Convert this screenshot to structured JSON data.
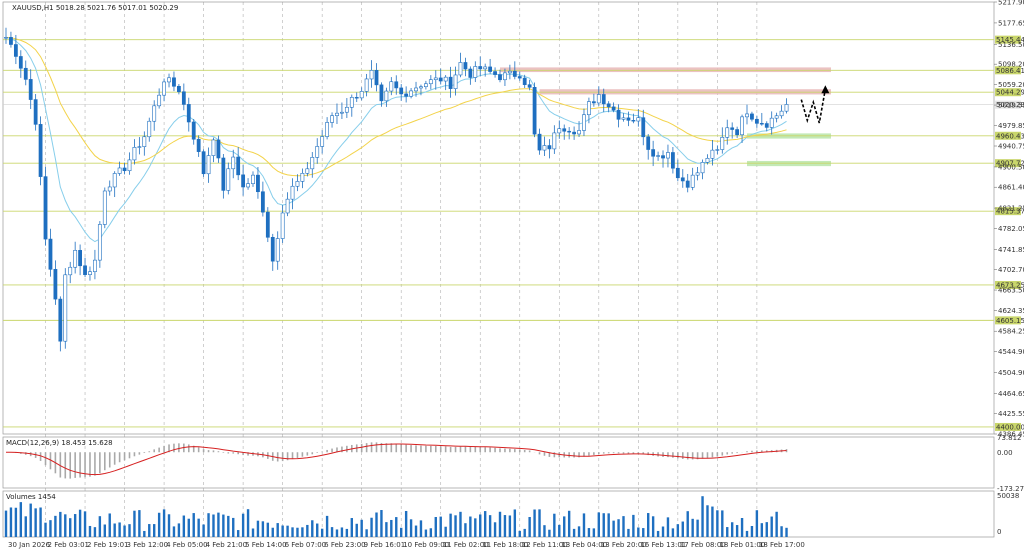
{
  "chart_data": {
    "type": "candlestick",
    "symbol_header": "XAUUSD,H1  5018.28 5021.76 5017.01 5020.29",
    "colors": {
      "up": "#1e6fc0",
      "down": "#1e6fc0",
      "grid": "#b0b0b0",
      "level_line": "#c9d66b",
      "zone": "#e8b7b7",
      "support_zone": "#b8e5a8",
      "ma_fast": "#87ceeb",
      "ma_slow": "#f3d34a",
      "macd_signal": "#d62020",
      "macd_hist": "#a9a9a9",
      "volume": "#1e6fc0",
      "price_tag": "#c9d66b",
      "current_price_tag": "#e6e6e6",
      "arrow": "#000000"
    },
    "price_axis": {
      "ylim": [
        4386.45,
        5217.9
      ],
      "ticks": [
        "5217.90",
        "5177.65",
        "5136.50",
        "5098.20",
        "5059.20",
        "5019.55",
        "4979.85",
        "4940.75",
        "4900.50",
        "4861.40",
        "4821.25",
        "4782.05",
        "4741.85",
        "4702.70",
        "4663.50",
        "4624.35",
        "4584.25",
        "4544.90",
        "4504.90",
        "4464.65",
        "4425.55",
        "4386.45"
      ]
    },
    "levels": [
      {
        "value": 5145.44,
        "label": "5145.44"
      },
      {
        "value": 5086.41,
        "label": "5086.41"
      },
      {
        "value": 5044.29,
        "label": "5044.29"
      },
      {
        "value": 4960.43,
        "label": "4960.43"
      },
      {
        "value": 4907.72,
        "label": "4907.72"
      },
      {
        "value": 4815.37,
        "label": "4815.37"
      },
      {
        "value": 4673.25,
        "label": "4673.25"
      },
      {
        "value": 4605.15,
        "label": "4605.15"
      },
      {
        "value": 4400.0,
        "label": "4400.00"
      }
    ],
    "current_price": {
      "value": 5020.29,
      "label": "5020.29"
    },
    "resistance_zones": [
      {
        "from": 5083,
        "to": 5092,
        "start_index": 100
      },
      {
        "from": 5040,
        "to": 5050,
        "start_index": 108
      }
    ],
    "support_zones": [
      {
        "from": 4902,
        "to": 4912,
        "start_index": 150
      },
      {
        "from": 4955,
        "to": 4965,
        "start_index": 150
      }
    ],
    "forecast_path": [
      5030,
      4990,
      5025,
      4985,
      5050
    ],
    "x_ticks": [
      "30 Jan 2026",
      "2 Feb 03:01",
      "2 Feb 19:01",
      "3 Feb 12:00",
      "4 Feb 05:00",
      "4 Feb 21:00",
      "5 Feb 14:00",
      "6 Feb 07:00",
      "6 Feb 23:00",
      "9 Feb 16:01",
      "10 Feb 09:00",
      "11 Feb 02:00",
      "11 Feb 18:00",
      "12 Feb 11:00",
      "13 Feb 04:00",
      "13 Feb 20:00",
      "16 Feb 13:01",
      "17 Feb 08:00",
      "18 Feb 01:00",
      "18 Feb 17:00"
    ],
    "x_tick_bar_index": [
      0,
      8,
      16,
      24,
      32,
      40,
      48,
      56,
      64,
      72,
      80,
      88,
      96,
      104,
      112,
      120,
      128,
      136,
      144,
      152
    ],
    "close_anchors": [
      [
        0,
        5150
      ],
      [
        2,
        5120
      ],
      [
        4,
        5070
      ],
      [
        6,
        4990
      ],
      [
        8,
        4760
      ],
      [
        10,
        4650
      ],
      [
        11,
        4560
      ],
      [
        12,
        4690
      ],
      [
        14,
        4740
      ],
      [
        16,
        4690
      ],
      [
        18,
        4720
      ],
      [
        20,
        4860
      ],
      [
        24,
        4900
      ],
      [
        28,
        4960
      ],
      [
        32,
        5070
      ],
      [
        35,
        5050
      ],
      [
        38,
        4960
      ],
      [
        40,
        4890
      ],
      [
        42,
        4960
      ],
      [
        44,
        4860
      ],
      [
        46,
        4920
      ],
      [
        48,
        4860
      ],
      [
        50,
        4880
      ],
      [
        52,
        4820
      ],
      [
        54,
        4720
      ],
      [
        56,
        4820
      ],
      [
        58,
        4860
      ],
      [
        60,
        4880
      ],
      [
        64,
        4960
      ],
      [
        66,
        5000
      ],
      [
        68,
        5010
      ],
      [
        72,
        5050
      ],
      [
        74,
        5080
      ],
      [
        76,
        5020
      ],
      [
        78,
        5060
      ],
      [
        80,
        5040
      ],
      [
        84,
        5060
      ],
      [
        88,
        5070
      ],
      [
        90,
        5060
      ],
      [
        92,
        5100
      ],
      [
        94,
        5080
      ],
      [
        96,
        5090
      ],
      [
        100,
        5075
      ],
      [
        104,
        5080
      ],
      [
        106,
        5050
      ],
      [
        107,
        4960
      ],
      [
        108,
        4930
      ],
      [
        110,
        4940
      ],
      [
        112,
        4980
      ],
      [
        116,
        4970
      ],
      [
        118,
        5020
      ],
      [
        120,
        5040
      ],
      [
        122,
        5020
      ],
      [
        124,
        5000
      ],
      [
        126,
        4995
      ],
      [
        128,
        4990
      ],
      [
        130,
        4940
      ],
      [
        132,
        4920
      ],
      [
        134,
        4930
      ],
      [
        136,
        4880
      ],
      [
        138,
        4870
      ],
      [
        140,
        4890
      ],
      [
        142,
        4920
      ],
      [
        144,
        4930
      ],
      [
        146,
        4980
      ],
      [
        148,
        4970
      ],
      [
        150,
        5010
      ],
      [
        152,
        4990
      ],
      [
        154,
        4985
      ],
      [
        156,
        5000
      ],
      [
        158,
        5020
      ]
    ],
    "macd": {
      "label": "MACD(12,26,9) 18.453 15.628",
      "ylim": [
        -173.273,
        73.812
      ],
      "ticks": [
        "73.812",
        "0.00",
        "-173.273"
      ]
    },
    "volume": {
      "label": "Volumes 1454",
      "ticks": [
        "50038",
        "0"
      ]
    }
  }
}
